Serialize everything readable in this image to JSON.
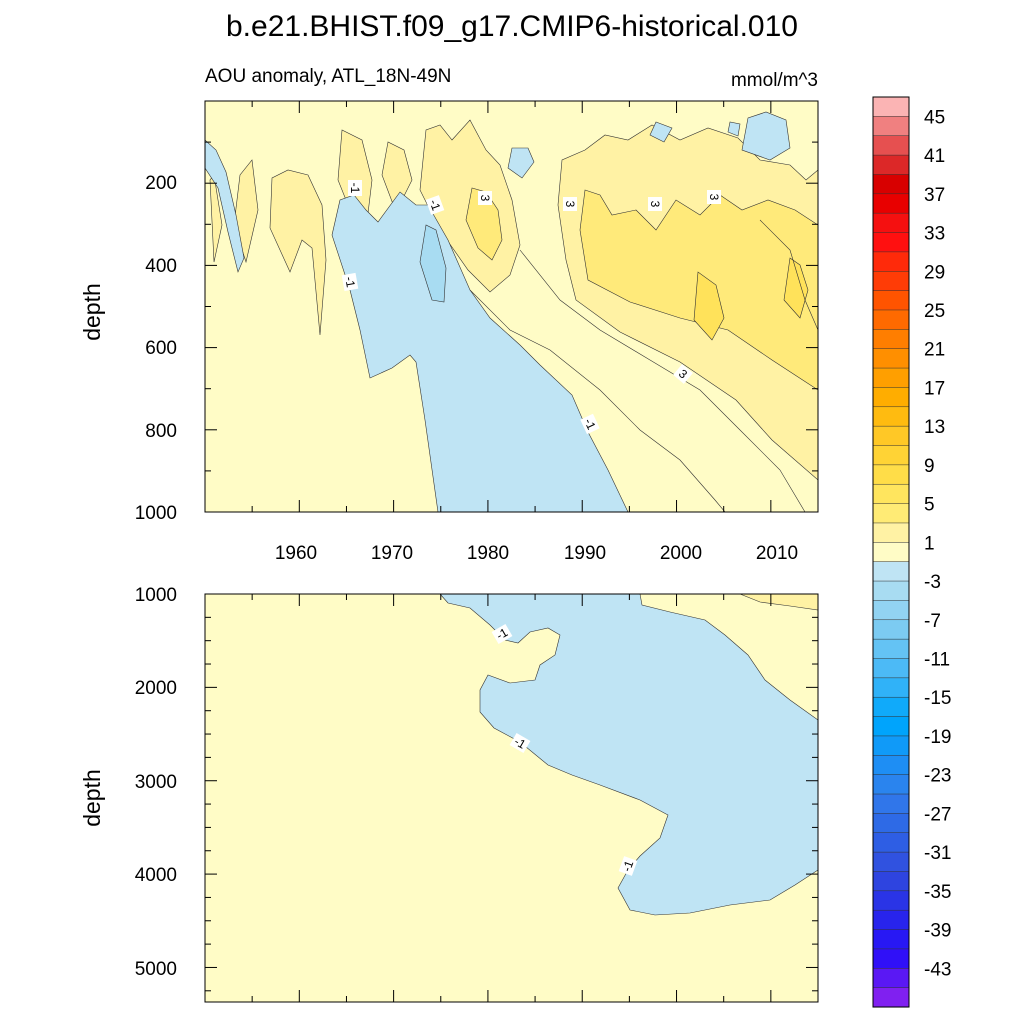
{
  "chart_data": {
    "type": "heatmap",
    "title": "b.e21.BHIST.f09_g17.CMIP6-historical.010",
    "subtitle_left": "AOU anomaly, ATL_18N-49N",
    "units": "mmol/m^3",
    "colors": {
      "pos1": "#fffcc6",
      "pos3": "#fff2a4",
      "pos5": "#ffea7a",
      "neg1": "#bfe4f4"
    },
    "colorbar": {
      "labels": [
        "45",
        "41",
        "37",
        "33",
        "29",
        "25",
        "21",
        "17",
        "13",
        "9",
        "5",
        "1",
        "-3",
        "-7",
        "-11",
        "-15",
        "-19",
        "-23",
        "-27",
        "-31",
        "-35",
        "-39",
        "-43"
      ],
      "colors": [
        "#fbb4b4",
        "#f08080",
        "#e65050",
        "#dc2828",
        "#d80000",
        "#e80000",
        "#f51010",
        "#ff1010",
        "#ff2a0a",
        "#ff3c06",
        "#ff5400",
        "#ff6a00",
        "#ff7e00",
        "#ff8f00",
        "#ff9f00",
        "#ffad00",
        "#ffbb10",
        "#ffc826",
        "#ffd335",
        "#ffdd48",
        "#ffe55e",
        "#ffeb75",
        "#fff2a4",
        "#fffcc6",
        "#bfe4f4",
        "#a8dcf2",
        "#92d3f2",
        "#7ccbf2",
        "#64c3f4",
        "#4cbaf6",
        "#30b2f8",
        "#10aafa",
        "#00a4fc",
        "#109af8",
        "#1e8ef4",
        "#2a84ee",
        "#3076ea",
        "#2e6ae6",
        "#2e5ee4",
        "#3052e0",
        "#2e44e0",
        "#2a34e6",
        "#2824ec",
        "#2818f4",
        "#3010f8",
        "#5a18f4",
        "#8020f0"
      ]
    },
    "panels": [
      {
        "name": "upper",
        "xlim": [
          1950,
          2015
        ],
        "ylim": [
          1000,
          0
        ],
        "ylabel": "depth",
        "xticks": [
          "1960",
          "1970",
          "1980",
          "1990",
          "2000",
          "2010"
        ],
        "yticks": [
          "200",
          "400",
          "600",
          "800",
          "1000"
        ],
        "contour_labels": [
          "-1",
          "-1",
          "-1",
          "-1",
          "3",
          "3",
          "3",
          "3",
          "3"
        ]
      },
      {
        "name": "lower",
        "xlim": [
          1950,
          2015
        ],
        "ylim": [
          5400,
          1000
        ],
        "ylabel": "depth",
        "yticks": [
          "1000",
          "2000",
          "3000",
          "4000",
          "5000"
        ],
        "contour_labels": [
          "-1",
          "-1",
          "-1"
        ]
      }
    ]
  }
}
